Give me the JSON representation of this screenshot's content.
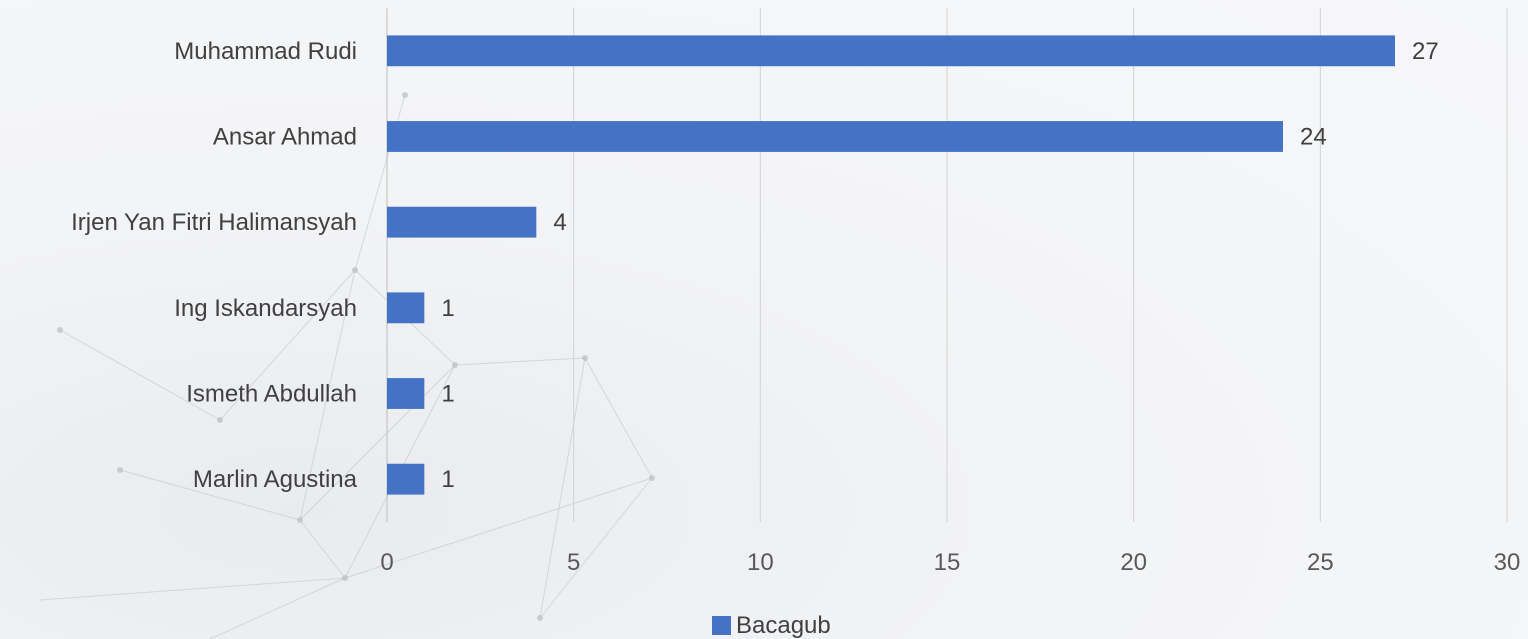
{
  "chart_data": {
    "type": "bar",
    "orientation": "horizontal",
    "categories": [
      "Muhammad Rudi",
      "Ansar Ahmad",
      "Irjen Yan Fitri Halimansyah",
      "Ing Iskandarsyah",
      "Ismeth Abdullah",
      "Marlin Agustina"
    ],
    "series": [
      {
        "name": "Bacagub",
        "values": [
          27,
          24,
          4,
          1,
          1,
          1
        ],
        "color": "#4472c4"
      }
    ],
    "data_labels": [
      "27",
      "24",
      "4",
      "1",
      "1",
      "1"
    ],
    "title": "",
    "xlabel": "",
    "ylabel": "",
    "xlim": [
      0,
      30
    ],
    "x_ticks": [
      0,
      5,
      10,
      15,
      20,
      25,
      30
    ],
    "x_tick_labels": [
      "0",
      "5",
      "10",
      "15",
      "20",
      "25",
      "30"
    ],
    "grid": "vertical",
    "legend": {
      "position": "bottom",
      "entries": [
        "Bacagub"
      ]
    }
  }
}
